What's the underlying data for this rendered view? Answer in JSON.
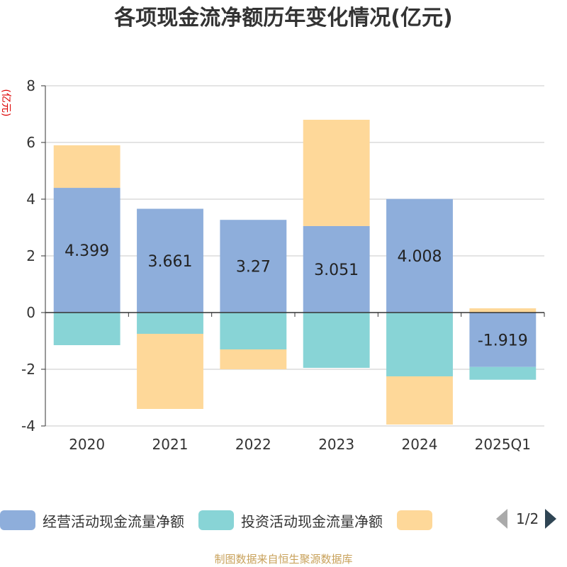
{
  "chart_data": {
    "type": "bar",
    "stacked": true,
    "title": "各项现金流净额历年变化情况(亿元)",
    "ylabel": "(亿元)",
    "categories": [
      "2020",
      "2021",
      "2022",
      "2023",
      "2024",
      "2025Q1"
    ],
    "ylim": [
      -4,
      8
    ],
    "yticks": [
      -4,
      -2,
      0,
      2,
      4,
      6,
      8
    ],
    "grid": true,
    "legend_position": "bottom",
    "series": [
      {
        "name": "经营活动现金流量净额",
        "color": "#8eaedb",
        "values": [
          4.399,
          3.661,
          3.27,
          3.051,
          4.008,
          -1.919
        ],
        "data_labels": [
          "4.399",
          "3.661",
          "3.27",
          "3.051",
          "4.008",
          "-1.919"
        ]
      },
      {
        "name": "投资活动现金流量净额",
        "color": "#88d4d6",
        "values": [
          -1.15,
          -0.75,
          -1.3,
          -1.95,
          -2.25,
          -0.45
        ]
      },
      {
        "name": "",
        "color": "#fed899",
        "values": [
          1.5,
          -2.65,
          -0.7,
          3.75,
          -1.7,
          0.15
        ]
      }
    ]
  },
  "legend": {
    "page": "1/2"
  },
  "source": "制图数据来自恒生聚源数据库"
}
